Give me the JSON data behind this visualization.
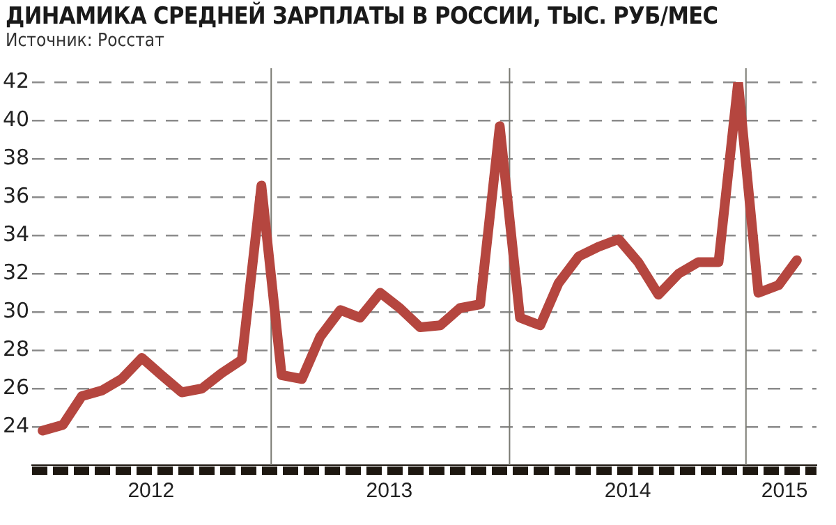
{
  "chart_data": {
    "type": "line",
    "title": "ДИНАМИКА СРЕДНЕЙ ЗАРПЛАТЫ В РОССИИ, ТЫС. РУБ/МЕС",
    "subtitle": "Источник: Росстат",
    "x": [
      "2012-01",
      "2012-02",
      "2012-03",
      "2012-04",
      "2012-05",
      "2012-06",
      "2012-07",
      "2012-08",
      "2012-09",
      "2012-10",
      "2012-11",
      "2012-12",
      "2013-01",
      "2013-02",
      "2013-03",
      "2013-04",
      "2013-05",
      "2013-06",
      "2013-07",
      "2013-08",
      "2013-09",
      "2013-10",
      "2013-11",
      "2013-12",
      "2014-01",
      "2014-02",
      "2014-03",
      "2014-04",
      "2014-05",
      "2014-06",
      "2014-07",
      "2014-08",
      "2014-09",
      "2014-10",
      "2014-11",
      "2014-12",
      "2015-01",
      "2015-02",
      "2015-03"
    ],
    "series": [
      {
        "color": "#b5463f",
        "values": [
          23.8,
          24.1,
          25.6,
          25.9,
          26.5,
          27.6,
          26.7,
          25.8,
          26.0,
          26.8,
          27.5,
          36.6,
          26.7,
          26.5,
          28.7,
          30.1,
          29.7,
          31.0,
          30.2,
          29.2,
          29.3,
          30.2,
          30.4,
          39.7,
          29.7,
          29.3,
          31.5,
          32.9,
          33.4,
          33.8,
          32.6,
          30.9,
          32.0,
          32.6,
          32.6,
          42.0,
          31.0,
          31.4,
          32.7
        ]
      }
    ],
    "xlim": [
      "2011-12-16",
      "2015-03-31"
    ],
    "xticks": [
      {
        "value": "2012-06-15",
        "label": "2012"
      },
      {
        "value": "2013-06-15",
        "label": "2013"
      },
      {
        "value": "2014-06-15",
        "label": "2014"
      },
      {
        "value": "2015-02-10",
        "label": "2015"
      }
    ],
    "ylim": [
      22,
      42
    ],
    "yticks": [
      24,
      26,
      28,
      30,
      32,
      34,
      36,
      38,
      40,
      42
    ],
    "ref_lines": [
      {
        "axis": "x",
        "value": "2012-12-16",
        "color": "#7a7a72"
      },
      {
        "axis": "x",
        "value": "2013-12-16",
        "color": "#7a7a72"
      },
      {
        "axis": "x",
        "value": "2014-12-13",
        "color": "#7a7a72"
      }
    ],
    "grid": "y",
    "legend": false,
    "marker": "none",
    "line_style": "solid"
  }
}
